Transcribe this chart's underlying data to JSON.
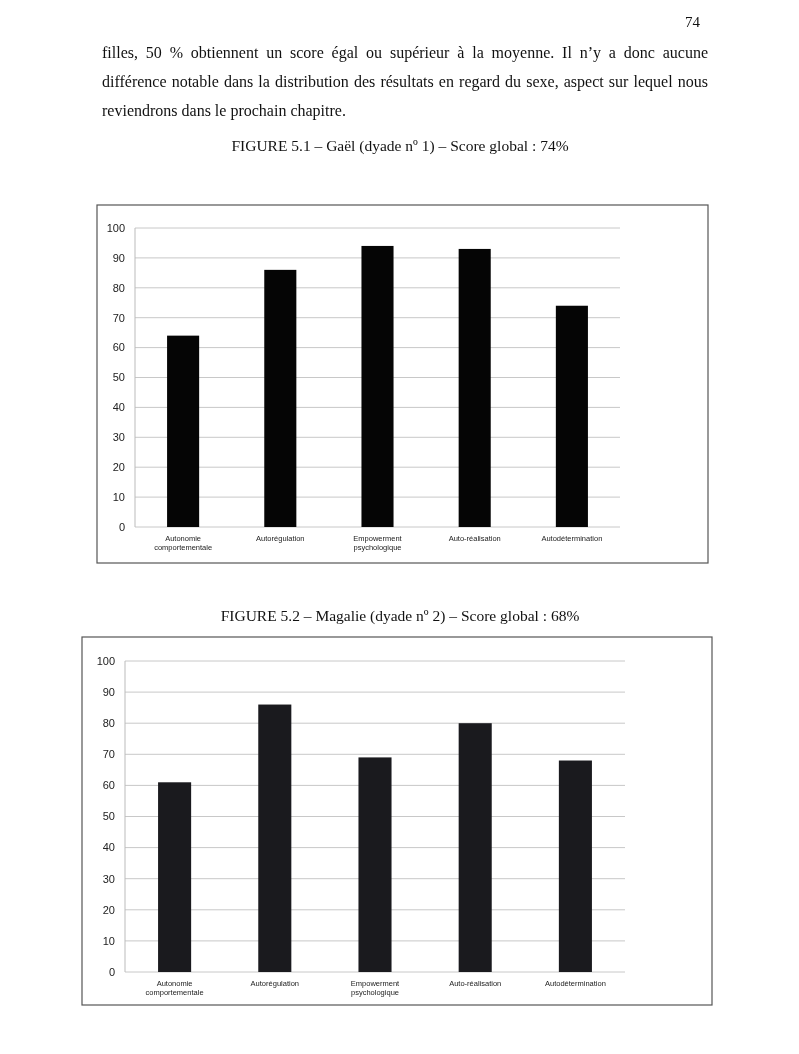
{
  "chart_data": [
    {
      "type": "bar",
      "title": "FIGURE 5.1 – Gaël (dyade nº 1) – Score global : 74%",
      "annotations": [
        "74",
        "filles, 50 % obtiennent un score égal ou supérieur à la moyenne. Il n’y a donc aucune différence notable dans la distribution des résultats en regard du sexe, aspect sur lequel nous reviendrons dans le prochain chapitre."
      ],
      "categories": [
        "Autonomie comportementale",
        "Autorégulation",
        "Empowerment psychologique",
        "Auto-réalisation",
        "Autodétermination"
      ],
      "values": [
        64,
        86,
        94,
        93,
        74
      ],
      "color": "#050505",
      "ylim": [
        0,
        100
      ],
      "yticks": [
        0,
        10,
        20,
        30,
        40,
        50,
        60,
        70,
        80,
        90,
        100
      ],
      "grid": "y"
    },
    {
      "type": "bar",
      "title": "FIGURE 5.2 – Magalie (dyade nº 2) – Score global : 68%",
      "categories": [
        "Autonomie comportementale",
        "Autorégulation",
        "Empowerment psychologique",
        "Auto-réalisation",
        "Autodétermination"
      ],
      "values": [
        61,
        86,
        69,
        80,
        68
      ],
      "color": "#1a1a1e",
      "ylim": [
        0,
        100
      ],
      "yticks": [
        0,
        10,
        20,
        30,
        40,
        50,
        60,
        70,
        80,
        90,
        100
      ],
      "grid": "y"
    }
  ]
}
